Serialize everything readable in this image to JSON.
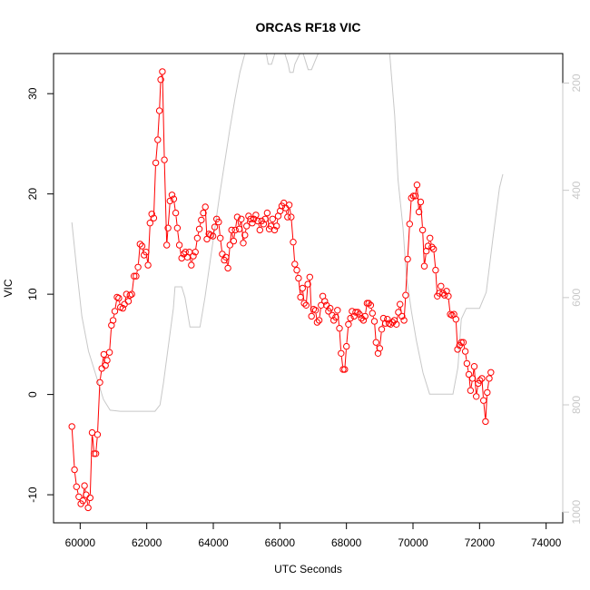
{
  "chart_data": {
    "type": "line",
    "title": "ORCAS RF18 VIC",
    "xlabel": "UTC Seconds",
    "ylabel": "VIC",
    "xlim": [
      59200,
      74500
    ],
    "ylim": [
      -12.8,
      34
    ],
    "y2lim": [
      1020,
      145
    ],
    "y2_reversed": true,
    "x_ticks": [
      60000,
      62000,
      64000,
      66000,
      68000,
      70000,
      72000,
      74000
    ],
    "y_ticks": [
      -10,
      0,
      10,
      20,
      30
    ],
    "y2_ticks": [
      200,
      400,
      600,
      800,
      1000
    ],
    "colors": {
      "vic": "#ff0000",
      "altitude": "#c8c8c8"
    },
    "series": [
      {
        "role": "vic",
        "axis": "left",
        "style": "line+markers",
        "points": [
          [
            59750,
            -3.2
          ],
          [
            59830,
            -7.5
          ],
          [
            59890,
            -9.2
          ],
          [
            59960,
            -10.2
          ],
          [
            60020,
            -10.9
          ],
          [
            60080,
            -10.6
          ],
          [
            60130,
            -9.1
          ],
          [
            60180,
            -10
          ],
          [
            60240,
            -11.3
          ],
          [
            60300,
            -10.3
          ],
          [
            60360,
            -3.8
          ],
          [
            60420,
            -5.9
          ],
          [
            60470,
            -5.9
          ],
          [
            60520,
            -4
          ],
          [
            60590,
            1.2
          ],
          [
            60650,
            2.6
          ],
          [
            60710,
            4
          ],
          [
            60760,
            2.9
          ],
          [
            60810,
            3.4
          ],
          [
            60880,
            4.2
          ],
          [
            60940,
            6.9
          ],
          [
            60990,
            7.4
          ],
          [
            61040,
            8.3
          ],
          [
            61110,
            9.7
          ],
          [
            61160,
            9.6
          ],
          [
            61210,
            8.7
          ],
          [
            61280,
            8.6
          ],
          [
            61330,
            9
          ],
          [
            61390,
            10
          ],
          [
            61450,
            9.3
          ],
          [
            61500,
            9.9
          ],
          [
            61550,
            10
          ],
          [
            61620,
            11.8
          ],
          [
            61680,
            11.8
          ],
          [
            61740,
            12.7
          ],
          [
            61800,
            15
          ],
          [
            61860,
            14.8
          ],
          [
            61920,
            13.9
          ],
          [
            61980,
            14.2
          ],
          [
            62040,
            12.9
          ],
          [
            62100,
            17.1
          ],
          [
            62150,
            18
          ],
          [
            62210,
            17.6
          ],
          [
            62270,
            23.1
          ],
          [
            62330,
            25.4
          ],
          [
            62380,
            28.3
          ],
          [
            62420,
            31.4
          ],
          [
            62470,
            32.2
          ],
          [
            62530,
            23.4
          ],
          [
            62600,
            14.9
          ],
          [
            62640,
            16.6
          ],
          [
            62700,
            19.3
          ],
          [
            62760,
            19.9
          ],
          [
            62810,
            19.5
          ],
          [
            62870,
            18.1
          ],
          [
            62920,
            16.6
          ],
          [
            62980,
            14.9
          ],
          [
            63050,
            13.6
          ],
          [
            63110,
            14
          ],
          [
            63160,
            14.2
          ],
          [
            63220,
            13.7
          ],
          [
            63280,
            14.2
          ],
          [
            63340,
            12.9
          ],
          [
            63400,
            13.8
          ],
          [
            63460,
            14.2
          ],
          [
            63520,
            15.6
          ],
          [
            63580,
            16.5
          ],
          [
            63640,
            17.4
          ],
          [
            63700,
            18.1
          ],
          [
            63760,
            18.7
          ],
          [
            63810,
            15.5
          ],
          [
            63870,
            16
          ],
          [
            63920,
            15.9
          ],
          [
            63990,
            15.8
          ],
          [
            64040,
            16.7
          ],
          [
            64100,
            17.5
          ],
          [
            64160,
            17.2
          ],
          [
            64210,
            15.6
          ],
          [
            64270,
            14
          ],
          [
            64330,
            13.4
          ],
          [
            64380,
            13.7
          ],
          [
            64440,
            12.6
          ],
          [
            64500,
            14.9
          ],
          [
            64550,
            16.4
          ],
          [
            64610,
            15.3
          ],
          [
            64660,
            16.4
          ],
          [
            64720,
            17.7
          ],
          [
            64780,
            16.5
          ],
          [
            64840,
            17.5
          ],
          [
            64900,
            15.1
          ],
          [
            64950,
            15.9
          ],
          [
            65000,
            16.8
          ],
          [
            65060,
            17.8
          ],
          [
            65120,
            17.5
          ],
          [
            65170,
            17.1
          ],
          [
            65220,
            17.5
          ],
          [
            65280,
            17.9
          ],
          [
            65340,
            17.3
          ],
          [
            65400,
            16.4
          ],
          [
            65450,
            17.3
          ],
          [
            65510,
            17
          ],
          [
            65560,
            17.5
          ],
          [
            65620,
            18.1
          ],
          [
            65680,
            16.5
          ],
          [
            65730,
            16.8
          ],
          [
            65780,
            17.5
          ],
          [
            65840,
            16.4
          ],
          [
            65900,
            16.8
          ],
          [
            65950,
            17.8
          ],
          [
            66010,
            18.3
          ],
          [
            66060,
            18.8
          ],
          [
            66120,
            19.1
          ],
          [
            66170,
            18.6
          ],
          [
            66230,
            17.7
          ],
          [
            66280,
            18.9
          ],
          [
            66340,
            17.7
          ],
          [
            66400,
            15.2
          ],
          [
            66450,
            13
          ],
          [
            66510,
            12.4
          ],
          [
            66560,
            11.6
          ],
          [
            66620,
            9.7
          ],
          [
            66680,
            10.6
          ],
          [
            66730,
            9.1
          ],
          [
            66790,
            8.9
          ],
          [
            66840,
            11
          ],
          [
            66900,
            11.7
          ],
          [
            66950,
            7.8
          ],
          [
            67010,
            8.5
          ],
          [
            67070,
            8.4
          ],
          [
            67120,
            7.2
          ],
          [
            67180,
            7.4
          ],
          [
            67240,
            8.9
          ],
          [
            67290,
            9.8
          ],
          [
            67350,
            9.3
          ],
          [
            67400,
            8.9
          ],
          [
            67460,
            8.3
          ],
          [
            67510,
            8.6
          ],
          [
            67570,
            7.9
          ],
          [
            67620,
            7.4
          ],
          [
            67680,
            7.7
          ],
          [
            67730,
            8.4
          ],
          [
            67790,
            6.6
          ],
          [
            67840,
            4.1
          ],
          [
            67900,
            2.5
          ],
          [
            67950,
            2.5
          ],
          [
            68000,
            4.8
          ],
          [
            68060,
            7
          ],
          [
            68120,
            7.6
          ],
          [
            68170,
            8.3
          ],
          [
            68230,
            7.8
          ],
          [
            68280,
            8.2
          ],
          [
            68340,
            8.2
          ],
          [
            68390,
            8
          ],
          [
            68450,
            7.6
          ],
          [
            68510,
            7.4
          ],
          [
            68560,
            7.8
          ],
          [
            68620,
            9.1
          ],
          [
            68670,
            9.1
          ],
          [
            68730,
            8.9
          ],
          [
            68780,
            8.1
          ],
          [
            68840,
            7.3
          ],
          [
            68890,
            5.2
          ],
          [
            68950,
            4.1
          ],
          [
            69000,
            4.6
          ],
          [
            69060,
            6.5
          ],
          [
            69110,
            7.6
          ],
          [
            69170,
            7.1
          ],
          [
            69230,
            7.5
          ],
          [
            69280,
            7.1
          ],
          [
            69330,
            7
          ],
          [
            69390,
            7.2
          ],
          [
            69440,
            7.4
          ],
          [
            69500,
            7
          ],
          [
            69560,
            8.2
          ],
          [
            69610,
            9
          ],
          [
            69670,
            7.8
          ],
          [
            69730,
            7.4
          ],
          [
            69780,
            9.9
          ],
          [
            69840,
            13.5
          ],
          [
            69900,
            17
          ],
          [
            69950,
            19.6
          ],
          [
            70010,
            19.8
          ],
          [
            70070,
            19.8
          ],
          [
            70120,
            20.9
          ],
          [
            70180,
            18.2
          ],
          [
            70230,
            19.2
          ],
          [
            70290,
            16.4
          ],
          [
            70340,
            12.8
          ],
          [
            70400,
            14.3
          ],
          [
            70450,
            14.8
          ],
          [
            70510,
            15.6
          ],
          [
            70570,
            14.7
          ],
          [
            70620,
            14.5
          ],
          [
            70680,
            12.4
          ],
          [
            70730,
            9.8
          ],
          [
            70790,
            10.1
          ],
          [
            70840,
            10.8
          ],
          [
            70900,
            10.1
          ],
          [
            70950,
            9.9
          ],
          [
            71010,
            10.3
          ],
          [
            71060,
            9.8
          ],
          [
            71120,
            8
          ],
          [
            71170,
            7.9
          ],
          [
            71230,
            8
          ],
          [
            71290,
            7.5
          ],
          [
            71340,
            4.5
          ],
          [
            71400,
            4.9
          ],
          [
            71450,
            5.2
          ],
          [
            71510,
            5.2
          ],
          [
            71570,
            4.3
          ],
          [
            71620,
            3.1
          ],
          [
            71680,
            2
          ],
          [
            71730,
            0.4
          ],
          [
            71790,
            1.6
          ],
          [
            71840,
            2.8
          ],
          [
            71900,
            -0.2
          ],
          [
            71960,
            1.1
          ],
          [
            72010,
            1.4
          ],
          [
            72070,
            1.6
          ],
          [
            72120,
            -0.6
          ],
          [
            72180,
            -2.7
          ],
          [
            72230,
            0.2
          ],
          [
            72290,
            1.6
          ],
          [
            72340,
            2.2
          ]
        ]
      },
      {
        "role": "altitude",
        "axis": "right",
        "style": "line",
        "points": [
          [
            59750,
            460
          ],
          [
            59900,
            550
          ],
          [
            60050,
            635
          ],
          [
            60250,
            700
          ],
          [
            60500,
            750
          ],
          [
            60700,
            790
          ],
          [
            60900,
            810
          ],
          [
            61200,
            812
          ],
          [
            61700,
            812
          ],
          [
            62250,
            812
          ],
          [
            62400,
            800
          ],
          [
            62500,
            760
          ],
          [
            62650,
            690
          ],
          [
            62800,
            620
          ],
          [
            62850,
            580
          ],
          [
            63050,
            580
          ],
          [
            63150,
            600
          ],
          [
            63300,
            655
          ],
          [
            63500,
            655
          ],
          [
            63600,
            655
          ],
          [
            63750,
            600
          ],
          [
            63900,
            535
          ],
          [
            64050,
            470
          ],
          [
            64200,
            405
          ],
          [
            64350,
            345
          ],
          [
            64500,
            285
          ],
          [
            64650,
            230
          ],
          [
            64800,
            180
          ],
          [
            64950,
            145
          ],
          [
            65100,
            125
          ],
          [
            65250,
            115
          ],
          [
            65350,
            115
          ],
          [
            65550,
            130
          ],
          [
            65650,
            165
          ],
          [
            65750,
            165
          ],
          [
            65850,
            145
          ],
          [
            66150,
            145
          ],
          [
            66250,
            165
          ],
          [
            66300,
            180
          ],
          [
            66400,
            180
          ],
          [
            66450,
            165
          ],
          [
            66600,
            145
          ],
          [
            66700,
            145
          ],
          [
            66800,
            165
          ],
          [
            66850,
            175
          ],
          [
            66950,
            175
          ],
          [
            67050,
            160
          ],
          [
            67150,
            145
          ],
          [
            69300,
            145
          ],
          [
            69450,
            260
          ],
          [
            69550,
            380
          ],
          [
            69700,
            470
          ],
          [
            69800,
            560
          ],
          [
            69950,
            625
          ],
          [
            70100,
            680
          ],
          [
            70300,
            740
          ],
          [
            70500,
            780
          ],
          [
            70700,
            780
          ],
          [
            71200,
            780
          ],
          [
            71350,
            730
          ],
          [
            71450,
            640
          ],
          [
            71600,
            620
          ],
          [
            72000,
            620
          ],
          [
            72200,
            590
          ],
          [
            72400,
            490
          ],
          [
            72600,
            395
          ],
          [
            72700,
            370
          ]
        ]
      }
    ]
  }
}
